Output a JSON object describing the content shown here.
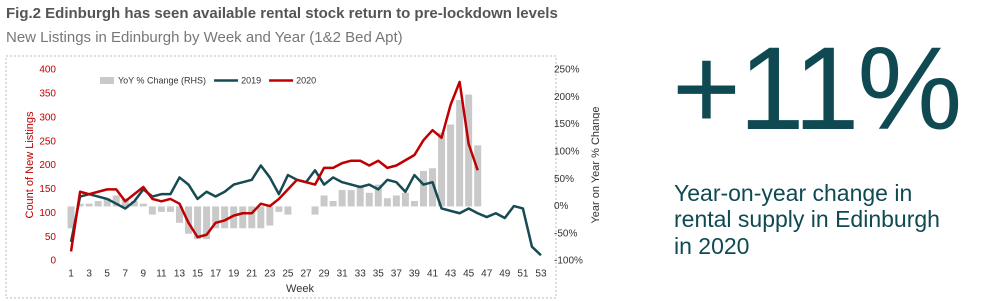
{
  "chart_data": {
    "type": "combo",
    "title": "Fig.2 Edinburgh has seen available rental stock return to pre-lockdown levels",
    "subtitle": "New Listings in Edinburgh by Week and Year (1&2 Bed Apt)",
    "x_label": "Week",
    "y_label": "Count of New Listings",
    "y2_label": "Year on Year % Change",
    "x": [
      1,
      2,
      3,
      4,
      5,
      6,
      7,
      8,
      9,
      10,
      11,
      12,
      13,
      14,
      15,
      16,
      17,
      18,
      19,
      20,
      21,
      22,
      23,
      24,
      25,
      26,
      27,
      28,
      29,
      30,
      31,
      32,
      33,
      34,
      35,
      36,
      37,
      38,
      39,
      40,
      41,
      42,
      43,
      44,
      45,
      46,
      47,
      48,
      49,
      50,
      51,
      52,
      53
    ],
    "xlim": [
      0,
      54
    ],
    "xticks": [
      1,
      3,
      5,
      7,
      9,
      11,
      13,
      15,
      17,
      19,
      21,
      23,
      25,
      27,
      29,
      31,
      33,
      35,
      37,
      39,
      41,
      43,
      45,
      47,
      49,
      51,
      53
    ],
    "ylim": [
      0,
      400
    ],
    "yticks": [
      0,
      50,
      100,
      150,
      200,
      250,
      300,
      350,
      400
    ],
    "y2lim": [
      -100,
      250
    ],
    "y2ticks": [
      {
        "value": -100,
        "label": "-100%"
      },
      {
        "value": -50,
        "label": "-50%"
      },
      {
        "value": 0,
        "label": "0%"
      },
      {
        "value": 50,
        "label": "50%"
      },
      {
        "value": 100,
        "label": "100%"
      },
      {
        "value": 150,
        "label": "150%"
      },
      {
        "value": 200,
        "label": "200%"
      },
      {
        "value": 250,
        "label": "250%"
      }
    ],
    "series": [
      {
        "name": "YoY % Change (RHS)",
        "type": "bar",
        "axis": "y2",
        "color": "#c9c9c9",
        "values": [
          -40,
          5,
          5,
          10,
          15,
          20,
          15,
          10,
          5,
          -15,
          -10,
          -10,
          -30,
          -50,
          -60,
          -60,
          -40,
          -40,
          -40,
          -40,
          -40,
          -40,
          -35,
          -10,
          -15,
          0,
          0,
          -15,
          20,
          10,
          30,
          30,
          35,
          25,
          40,
          15,
          20,
          25,
          10,
          65,
          70,
          135,
          150,
          195,
          205,
          112,
          null,
          null,
          null,
          null,
          null,
          null,
          null
        ]
      },
      {
        "name": "2019",
        "type": "line",
        "color": "#174b52",
        "values": [
          40,
          135,
          140,
          135,
          130,
          120,
          110,
          125,
          150,
          135,
          140,
          140,
          175,
          160,
          130,
          145,
          135,
          145,
          160,
          165,
          170,
          200,
          175,
          140,
          180,
          170,
          165,
          190,
          160,
          175,
          165,
          160,
          155,
          160,
          150,
          170,
          165,
          145,
          180,
          160,
          165,
          110,
          105,
          100,
          110,
          100,
          92,
          100,
          90,
          115,
          110,
          30,
          12
        ]
      },
      {
        "name": "2020",
        "type": "line",
        "color": "#c00000",
        "values": [
          20,
          145,
          140,
          145,
          150,
          150,
          125,
          140,
          155,
          130,
          125,
          130,
          120,
          80,
          50,
          55,
          80,
          85,
          95,
          100,
          100,
          120,
          115,
          130,
          150,
          170,
          165,
          160,
          195,
          195,
          205,
          210,
          210,
          200,
          210,
          195,
          200,
          211,
          222,
          253,
          274,
          258,
          327,
          375,
          245,
          190,
          null,
          null,
          null,
          null,
          null,
          null,
          null
        ]
      }
    ]
  },
  "callout": {
    "headline": "+11%",
    "caption": "Year-on-year change in rental supply in Edinburgh in 2020"
  }
}
